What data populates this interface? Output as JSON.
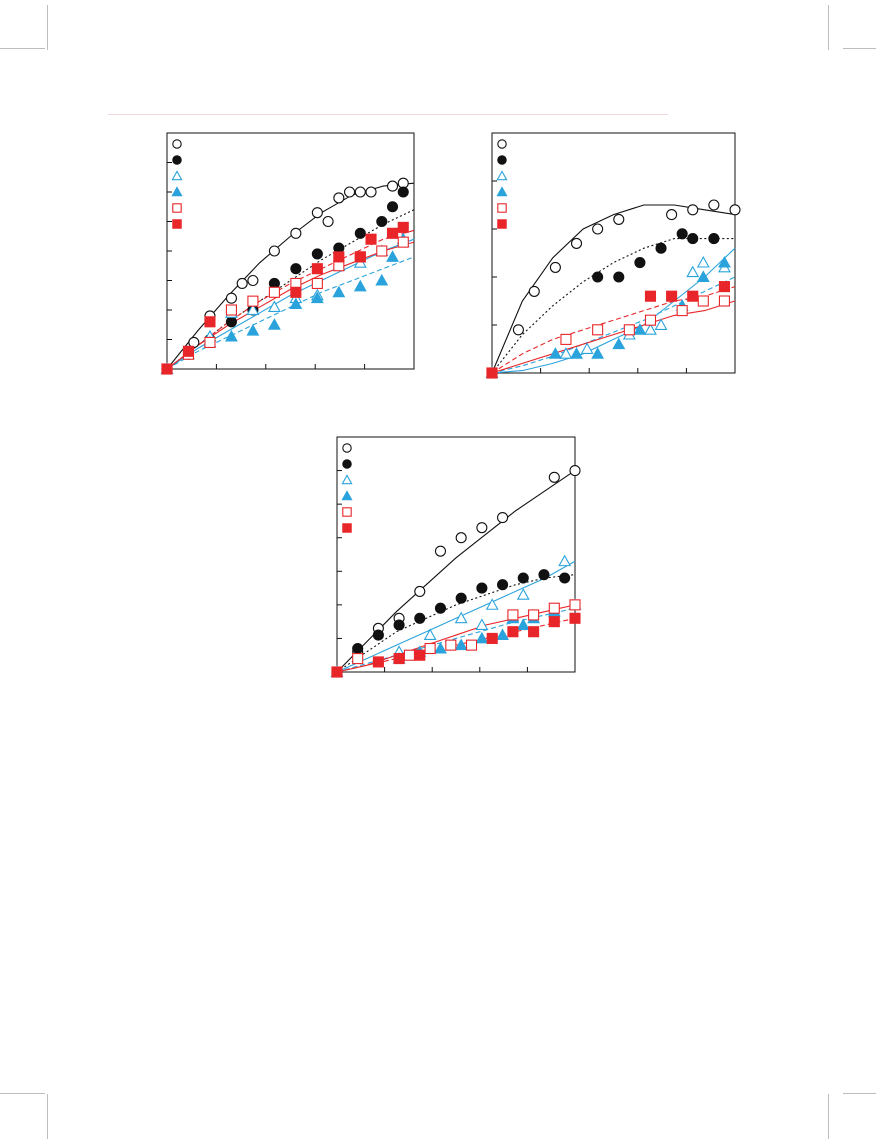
{
  "page": {
    "title": "",
    "colors": {
      "black": "#111111",
      "blue": "#2aa3dc",
      "red": "#e8262a",
      "rule": "#f3d6d6"
    }
  },
  "chart_data": [
    {
      "type": "scatter",
      "title": "",
      "xlabel": "",
      "ylabel": "",
      "xlim": [
        0,
        4.6
      ],
      "ylim": [
        0,
        8
      ],
      "grid": false,
      "legend": "top-left",
      "series": [
        {
          "marker": "circle",
          "filled": false,
          "color": "#111111",
          "fit": "solid",
          "x": [
            0,
            0.5,
            0.8,
            1.2,
            1.4,
            1.6,
            2.0,
            2.4,
            2.8,
            3.0,
            3.2,
            3.4,
            3.6,
            3.8,
            4.2,
            4.4
          ],
          "y": [
            0,
            0.9,
            1.8,
            2.4,
            2.9,
            3.0,
            4.0,
            4.6,
            5.3,
            5.0,
            5.8,
            6.0,
            6.0,
            6.0,
            6.2,
            6.3
          ],
          "fit_y": [
            0,
            1.3,
            2.5,
            3.6,
            4.5,
            5.3,
            5.9,
            6.2,
            6.3
          ]
        },
        {
          "marker": "circle",
          "filled": true,
          "color": "#111111",
          "fit": "dotted",
          "x": [
            0,
            0.4,
            0.8,
            1.2,
            1.6,
            2.0,
            2.4,
            2.8,
            3.2,
            3.6,
            4.0,
            4.2,
            4.4
          ],
          "y": [
            0,
            0.5,
            1.0,
            1.6,
            2.0,
            2.9,
            3.4,
            3.9,
            4.1,
            4.6,
            5.0,
            5.5,
            6.0
          ],
          "fit_y": [
            0,
            0.8,
            1.6,
            2.3,
            3.0,
            3.7,
            4.3,
            4.9,
            5.4
          ]
        },
        {
          "marker": "triangle",
          "filled": false,
          "color": "#2aa3dc",
          "fit": "solid",
          "x": [
            0,
            0.8,
            1.2,
            1.6,
            2.0,
            2.4,
            2.8,
            3.2,
            3.6,
            4.0,
            4.4
          ],
          "y": [
            0,
            1.1,
            1.9,
            2.0,
            2.1,
            2.4,
            2.5,
            3.5,
            3.6,
            4.0,
            4.3
          ],
          "fit_y": [
            0,
            0.7,
            1.3,
            1.9,
            2.5,
            3.0,
            3.5,
            4.0,
            4.4
          ]
        },
        {
          "marker": "triangle",
          "filled": true,
          "color": "#2aa3dc",
          "fit": "dashed",
          "x": [
            0,
            0.4,
            0.8,
            1.2,
            1.6,
            2.0,
            2.4,
            2.8,
            3.2,
            3.6,
            4.0,
            4.2,
            4.4
          ],
          "y": [
            0,
            0.5,
            0.9,
            1.1,
            1.3,
            1.5,
            2.2,
            2.4,
            2.6,
            2.8,
            3.0,
            3.8,
            4.4
          ],
          "fit_y": [
            0,
            0.6,
            1.1,
            1.6,
            2.1,
            2.6,
            3.0,
            3.4,
            3.8
          ]
        },
        {
          "marker": "square",
          "filled": false,
          "color": "#e8262a",
          "fit": "solid",
          "x": [
            0,
            0.4,
            0.8,
            1.2,
            1.6,
            2.0,
            2.4,
            2.8,
            3.2,
            3.6,
            4.0,
            4.4
          ],
          "y": [
            0,
            0.5,
            0.9,
            2.0,
            2.3,
            2.6,
            2.9,
            2.9,
            3.5,
            3.8,
            4.0,
            4.3
          ],
          "fit_y": [
            0,
            0.8,
            1.5,
            2.1,
            2.7,
            3.2,
            3.6,
            4.0,
            4.3
          ]
        },
        {
          "marker": "square",
          "filled": true,
          "color": "#e8262a",
          "fit": "dashed",
          "x": [
            0,
            0.4,
            0.8,
            2.4,
            2.8,
            3.2,
            3.6,
            3.8,
            4.2,
            4.4
          ],
          "y": [
            0,
            0.6,
            1.6,
            2.6,
            3.4,
            3.8,
            3.8,
            4.4,
            4.6,
            4.8
          ],
          "fit_y": [
            0,
            0.8,
            1.6,
            2.3,
            2.9,
            3.4,
            3.9,
            4.4,
            4.7
          ]
        }
      ]
    },
    {
      "type": "scatter",
      "title": "",
      "xlabel": "",
      "ylabel": "",
      "xlim": [
        0,
        4.6
      ],
      "ylim": [
        0,
        5
      ],
      "grid": false,
      "legend": "top-left",
      "series": [
        {
          "marker": "circle",
          "filled": false,
          "color": "#111111",
          "fit": "solid",
          "x": [
            0,
            0.5,
            0.8,
            1.2,
            1.6,
            2.0,
            2.4,
            3.4,
            3.8,
            4.2,
            4.6
          ],
          "y": [
            0,
            0.9,
            1.7,
            2.2,
            2.7,
            3.0,
            3.2,
            3.3,
            3.4,
            3.5,
            3.4
          ],
          "fit_y": [
            0,
            1.5,
            2.4,
            3.0,
            3.3,
            3.5,
            3.5,
            3.4,
            3.3
          ]
        },
        {
          "marker": "circle",
          "filled": true,
          "color": "#111111",
          "fit": "dotted",
          "x": [
            0,
            2.0,
            2.4,
            2.8,
            3.2,
            3.6,
            3.8,
            4.2
          ],
          "y": [
            0,
            2.0,
            2.0,
            2.3,
            2.6,
            2.9,
            2.8,
            2.8
          ],
          "fit_y": [
            0,
            0.8,
            1.4,
            1.9,
            2.3,
            2.6,
            2.8,
            2.8,
            2.8
          ]
        },
        {
          "marker": "triangle",
          "filled": false,
          "color": "#2aa3dc",
          "fit": "solid",
          "x": [
            0,
            1.4,
            1.8,
            2.6,
            3.0,
            3.2,
            3.8,
            4.0,
            4.4
          ],
          "y": [
            0,
            0.4,
            0.5,
            0.8,
            0.9,
            1.0,
            2.1,
            2.3,
            2.2
          ],
          "fit_y": [
            0,
            0.05,
            0.2,
            0.4,
            0.7,
            1.0,
            1.5,
            2.0,
            2.6
          ]
        },
        {
          "marker": "triangle",
          "filled": true,
          "color": "#2aa3dc",
          "fit": "dashed",
          "x": [
            0,
            1.2,
            1.6,
            2.0,
            2.4,
            2.8,
            3.6,
            4.0,
            4.4
          ],
          "y": [
            0,
            0.4,
            0.4,
            0.4,
            0.6,
            0.9,
            1.4,
            2.0,
            2.3
          ],
          "fit_y": [
            0,
            0.15,
            0.35,
            0.6,
            0.85,
            1.1,
            1.4,
            1.7,
            2.0
          ]
        },
        {
          "marker": "square",
          "filled": false,
          "color": "#e8262a",
          "fit": "solid",
          "x": [
            0,
            1.4,
            2.0,
            2.6,
            3.0,
            3.6,
            4.0,
            4.4
          ],
          "y": [
            0,
            0.7,
            0.9,
            0.9,
            1.1,
            1.3,
            1.5,
            1.5
          ],
          "fit_y": [
            0,
            0.2,
            0.4,
            0.6,
            0.8,
            1.0,
            1.2,
            1.3,
            1.5
          ]
        },
        {
          "marker": "square",
          "filled": true,
          "color": "#e8262a",
          "fit": "dashed",
          "x": [
            0,
            3.0,
            3.4,
            3.8,
            4.4
          ],
          "y": [
            0,
            1.6,
            1.6,
            1.6,
            1.8
          ],
          "fit_y": [
            0,
            0.4,
            0.7,
            0.9,
            1.1,
            1.3,
            1.5,
            1.6,
            1.8
          ]
        }
      ]
    },
    {
      "type": "scatter",
      "title": "",
      "xlabel": "",
      "ylabel": "",
      "xlim": [
        0,
        4.6
      ],
      "ylim": [
        0,
        7
      ],
      "grid": false,
      "legend": "top-left",
      "series": [
        {
          "marker": "circle",
          "filled": false,
          "color": "#111111",
          "fit": "solid",
          "x": [
            0,
            0.4,
            0.8,
            1.2,
            1.6,
            2.0,
            2.4,
            2.8,
            3.2,
            4.2,
            4.6
          ],
          "y": [
            0,
            0.6,
            1.3,
            1.6,
            2.4,
            3.6,
            4.0,
            4.3,
            4.6,
            5.8,
            6.0
          ],
          "fit_y": [
            0,
            0.9,
            1.8,
            2.6,
            3.4,
            4.1,
            4.8,
            5.4,
            6.0
          ]
        },
        {
          "marker": "circle",
          "filled": true,
          "color": "#111111",
          "fit": "dotted",
          "x": [
            0,
            0.4,
            0.8,
            1.2,
            1.6,
            2.0,
            2.4,
            2.8,
            3.2,
            3.6,
            4.0,
            4.4
          ],
          "y": [
            0,
            0.7,
            1.1,
            1.4,
            1.6,
            1.9,
            2.2,
            2.5,
            2.6,
            2.8,
            2.9,
            2.8
          ],
          "fit_y": [
            0,
            0.6,
            1.2,
            1.6,
            2.0,
            2.3,
            2.6,
            2.8,
            2.9
          ]
        },
        {
          "marker": "triangle",
          "filled": false,
          "color": "#2aa3dc",
          "fit": "solid",
          "x": [
            0,
            1.2,
            1.8,
            2.4,
            2.8,
            3.0,
            3.6,
            4.4
          ],
          "y": [
            0,
            0.6,
            1.1,
            1.6,
            1.4,
            2.0,
            2.3,
            3.3
          ],
          "fit_y": [
            0,
            0.4,
            0.8,
            1.2,
            1.6,
            2.0,
            2.4,
            2.8,
            3.3
          ]
        },
        {
          "marker": "triangle",
          "filled": true,
          "color": "#2aa3dc",
          "fit": "dashed",
          "x": [
            0,
            1.2,
            1.6,
            2.0,
            2.4,
            2.8,
            3.2,
            3.4,
            3.6,
            3.8,
            4.2,
            4.6
          ],
          "y": [
            0,
            0.4,
            0.6,
            0.7,
            0.8,
            1.0,
            1.1,
            1.6,
            1.4,
            1.6,
            1.8,
            2.0
          ],
          "fit_y": [
            0,
            0.25,
            0.5,
            0.75,
            1.0,
            1.25,
            1.5,
            1.7,
            1.9
          ]
        },
        {
          "marker": "square",
          "filled": false,
          "color": "#e8262a",
          "fit": "solid",
          "x": [
            0,
            0.4,
            1.4,
            1.8,
            2.2,
            2.6,
            3.4,
            3.8,
            4.2,
            4.6
          ],
          "y": [
            0,
            0.4,
            0.5,
            0.7,
            0.8,
            0.8,
            1.7,
            1.7,
            1.9,
            2.0
          ],
          "fit_y": [
            0,
            0.2,
            0.5,
            0.8,
            1.1,
            1.4,
            1.6,
            1.8,
            2.0
          ]
        },
        {
          "marker": "square",
          "filled": true,
          "color": "#e8262a",
          "fit": "dashed",
          "x": [
            0,
            0.8,
            1.2,
            1.6,
            3.0,
            3.4,
            3.8,
            4.2,
            4.6
          ],
          "y": [
            0,
            0.3,
            0.4,
            0.5,
            1.0,
            1.2,
            1.2,
            1.5,
            1.6
          ],
          "fit_y": [
            0,
            0.2,
            0.4,
            0.6,
            0.8,
            1.0,
            1.2,
            1.4,
            1.6
          ]
        }
      ]
    }
  ]
}
